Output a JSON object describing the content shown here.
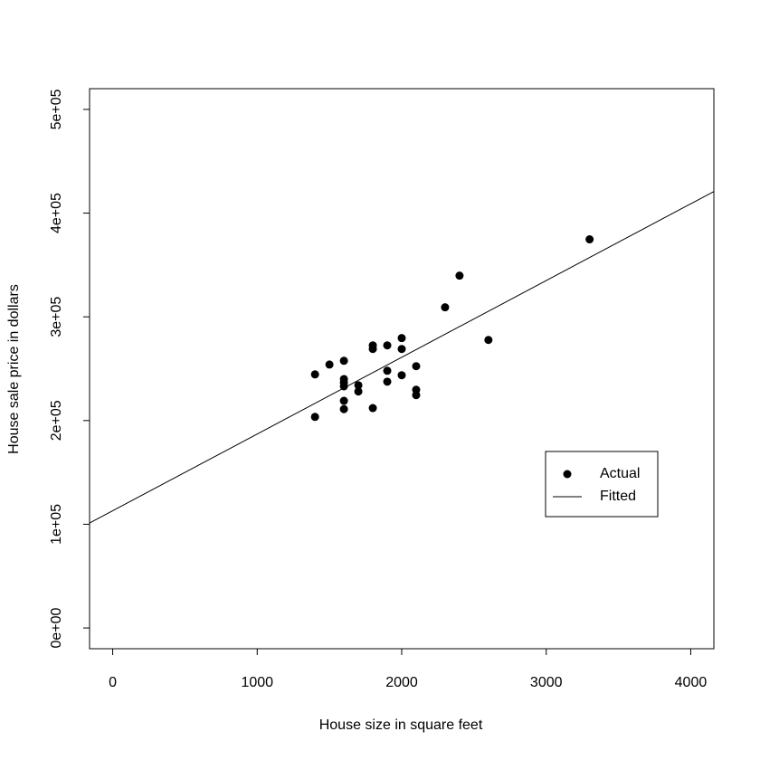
{
  "chart_data": {
    "type": "scatter",
    "xlabel": "House size in square feet",
    "ylabel": "House sale price in dollars",
    "xlim": [
      -160,
      4160
    ],
    "ylim": [
      -20000,
      520000
    ],
    "xticks": [
      0,
      1000,
      2000,
      3000,
      4000
    ],
    "yticks": [
      {
        "value": 0,
        "label": "0e+00"
      },
      {
        "value": 100000,
        "label": "1e+05"
      },
      {
        "value": 200000,
        "label": "2e+05"
      },
      {
        "value": 300000,
        "label": "3e+05"
      },
      {
        "value": 400000,
        "label": "4e+05"
      },
      {
        "value": 500000,
        "label": "5e+05"
      }
    ],
    "series": [
      {
        "name": "Actual",
        "color": "#000000",
        "x": [
          1400,
          1400,
          1500,
          1600,
          1600,
          1600,
          1600,
          1600,
          1600,
          1700,
          1700,
          1800,
          1800,
          1800,
          1900,
          1900,
          1900,
          2000,
          2000,
          2000,
          2100,
          2100,
          2100,
          2300,
          2400,
          2600,
          3300
        ],
        "values": [
          244500,
          203500,
          254000,
          257600,
          240000,
          236700,
          233000,
          219000,
          211000,
          234000,
          228000,
          272500,
          269000,
          212000,
          272500,
          248000,
          237500,
          279500,
          269000,
          243700,
          252400,
          229700,
          224500,
          309200,
          339700,
          277700,
          374700
        ]
      },
      {
        "name": "Fitted",
        "color": "#000000",
        "intercept": 113000,
        "slope": 74
      }
    ]
  }
}
